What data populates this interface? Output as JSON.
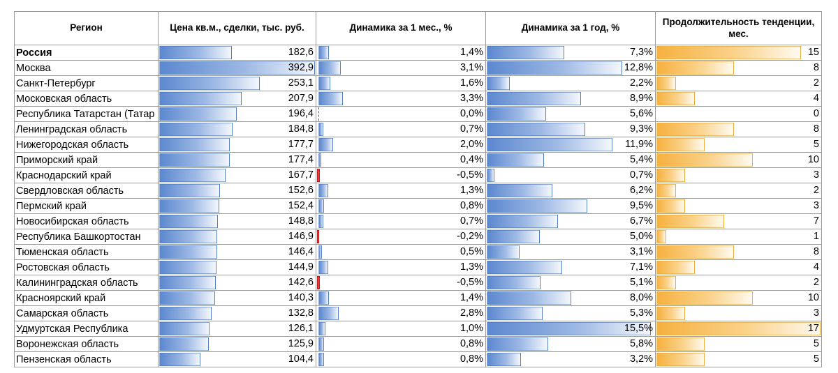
{
  "headers": {
    "region": "Регион",
    "price": "Цена кв.м., сделки, тыс. руб.",
    "month": "Динамика за 1 мес., %",
    "year": "Динамика за 1 год, %",
    "duration": "Продолжительность тенденции, мес."
  },
  "colors": {
    "bar_blue": "#5b88cf",
    "bar_orange": "#f6b13f",
    "bar_negative": "#e83b3b",
    "grid": "#9a9a9a"
  },
  "rows": [
    {
      "region": "Россия",
      "bold": true,
      "price": 182.6,
      "price_text": "182,6",
      "month": 1.4,
      "month_text": "1,4%",
      "year": 7.3,
      "year_text": "7,3%",
      "duration": 15,
      "duration_text": "15"
    },
    {
      "region": "Москва",
      "price": 392.9,
      "price_text": "392,9",
      "month": 3.1,
      "month_text": "3,1%",
      "year": 12.8,
      "year_text": "12,8%",
      "duration": 8,
      "duration_text": "8"
    },
    {
      "region": "Санкт-Петербург",
      "price": 253.1,
      "price_text": "253,1",
      "month": 1.6,
      "month_text": "1,6%",
      "year": 2.2,
      "year_text": "2,2%",
      "duration": 2,
      "duration_text": "2"
    },
    {
      "region": "Московская область",
      "price": 207.9,
      "price_text": "207,9",
      "month": 3.3,
      "month_text": "3,3%",
      "year": 8.9,
      "year_text": "8,9%",
      "duration": 4,
      "duration_text": "4"
    },
    {
      "region": "Республика Татарстан (Татар",
      "price": 196.4,
      "price_text": "196,4",
      "month": 0.0,
      "month_text": "0,0%",
      "year": 5.6,
      "year_text": "5,6%",
      "duration": 0,
      "duration_text": "0"
    },
    {
      "region": "Ленинградская область",
      "price": 184.8,
      "price_text": "184,8",
      "month": 0.7,
      "month_text": "0,7%",
      "year": 9.3,
      "year_text": "9,3%",
      "duration": 8,
      "duration_text": "8"
    },
    {
      "region": "Нижегородская область",
      "price": 177.7,
      "price_text": "177,7",
      "month": 2.0,
      "month_text": "2,0%",
      "year": 11.9,
      "year_text": "11,9%",
      "duration": 5,
      "duration_text": "5"
    },
    {
      "region": "Приморский край",
      "price": 177.4,
      "price_text": "177,4",
      "month": 0.4,
      "month_text": "0,4%",
      "year": 5.4,
      "year_text": "5,4%",
      "duration": 10,
      "duration_text": "10"
    },
    {
      "region": "Краснодарский край",
      "price": 167.7,
      "price_text": "167,7",
      "month": -0.5,
      "month_text": "-0,5%",
      "year": 0.7,
      "year_text": "0,7%",
      "duration": 3,
      "duration_text": "3"
    },
    {
      "region": "Свердловская область",
      "price": 152.6,
      "price_text": "152,6",
      "month": 1.3,
      "month_text": "1,3%",
      "year": 6.2,
      "year_text": "6,2%",
      "duration": 2,
      "duration_text": "2"
    },
    {
      "region": "Пермский край",
      "price": 152.4,
      "price_text": "152,4",
      "month": 0.8,
      "month_text": "0,8%",
      "year": 9.5,
      "year_text": "9,5%",
      "duration": 3,
      "duration_text": "3"
    },
    {
      "region": "Новосибирская область",
      "price": 148.8,
      "price_text": "148,8",
      "month": 0.7,
      "month_text": "0,7%",
      "year": 6.7,
      "year_text": "6,7%",
      "duration": 7,
      "duration_text": "7"
    },
    {
      "region": "Республика Башкортостан",
      "price": 146.9,
      "price_text": "146,9",
      "month": -0.2,
      "month_text": "-0,2%",
      "year": 5.0,
      "year_text": "5,0%",
      "duration": 1,
      "duration_text": "1"
    },
    {
      "region": "Тюменская область",
      "price": 146.4,
      "price_text": "146,4",
      "month": 0.5,
      "month_text": "0,5%",
      "year": 3.1,
      "year_text": "3,1%",
      "duration": 8,
      "duration_text": "8"
    },
    {
      "region": "Ростовская область",
      "price": 144.9,
      "price_text": "144,9",
      "month": 1.3,
      "month_text": "1,3%",
      "year": 7.1,
      "year_text": "7,1%",
      "duration": 4,
      "duration_text": "4"
    },
    {
      "region": "Калининградская область",
      "price": 142.6,
      "price_text": "142,6",
      "month": -0.5,
      "month_text": "-0,5%",
      "year": 5.1,
      "year_text": "5,1%",
      "duration": 2,
      "duration_text": "2"
    },
    {
      "region": "Красноярский край",
      "price": 140.3,
      "price_text": "140,3",
      "month": 1.4,
      "month_text": "1,4%",
      "year": 8.0,
      "year_text": "8,0%",
      "duration": 10,
      "duration_text": "10"
    },
    {
      "region": "Самарская область",
      "price": 132.8,
      "price_text": "132,8",
      "month": 2.8,
      "month_text": "2,8%",
      "year": 5.3,
      "year_text": "5,3%",
      "duration": 3,
      "duration_text": "3"
    },
    {
      "region": "Удмуртская Республика",
      "price": 126.1,
      "price_text": "126,1",
      "month": 1.0,
      "month_text": "1,0%",
      "year": 15.5,
      "year_text": "15,5%",
      "duration": 17,
      "duration_text": "17"
    },
    {
      "region": "Воронежская область",
      "price": 125.9,
      "price_text": "125,9",
      "month": 0.8,
      "month_text": "0,8%",
      "year": 5.8,
      "year_text": "5,8%",
      "duration": 5,
      "duration_text": "5"
    },
    {
      "region": "Пензенская область",
      "price": 104.4,
      "price_text": "104,4",
      "month": 0.8,
      "month_text": "0,8%",
      "year": 3.2,
      "year_text": "3,2%",
      "duration": 5,
      "duration_text": "5"
    }
  ]
}
